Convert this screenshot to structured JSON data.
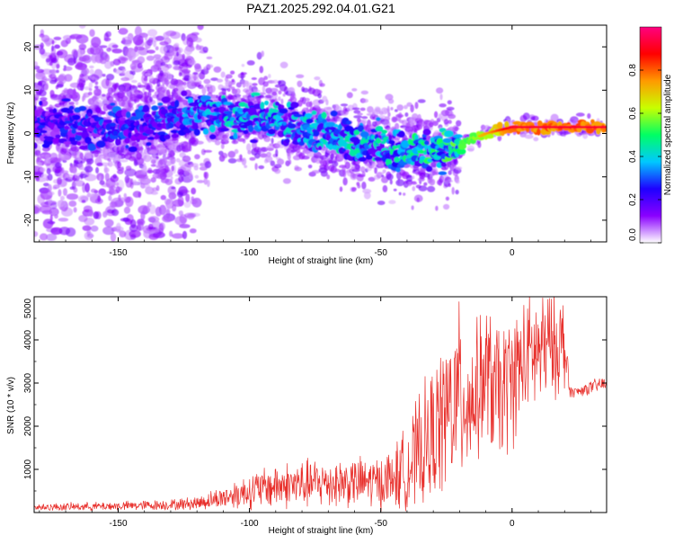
{
  "title": "PAZ1.2025.292.04.01.G21",
  "chart_data": [
    {
      "type": "heatmap",
      "xlabel": "Height of straight line (km)",
      "ylabel": "Frequency (Hz)",
      "xlim": [
        -182,
        36
      ],
      "ylim": [
        -25,
        25
      ],
      "xticks": [
        -150,
        -100,
        -50,
        0
      ],
      "yticks": [
        -20,
        -10,
        0,
        10,
        20
      ],
      "colorbar": {
        "label": "Normalized spectral amplitude",
        "range": [
          0,
          1
        ],
        "ticks": [
          "0.0",
          "0.2",
          "0.4",
          "0.6",
          "0.8"
        ],
        "colormap": [
          "#ffffff",
          "#8a00ff",
          "#1e00ff",
          "#00c8ff",
          "#00ff64",
          "#c8ff00",
          "#ff9a00",
          "#ff0000",
          "#ff0080"
        ]
      },
      "ridge": {
        "x": [
          -182,
          -150,
          -130,
          -120,
          -110,
          -100,
          -90,
          -80,
          -70,
          -60,
          -50,
          -40,
          -30,
          -20,
          -10,
          0,
          10,
          20,
          36
        ],
        "freq_hz": [
          2,
          1.5,
          3,
          5,
          4.5,
          4,
          3,
          1.5,
          -0.5,
          -2,
          -3,
          -4,
          -4,
          -3,
          0,
          1.5,
          1.5,
          1.5,
          1.5
        ],
        "peak_amplitude": [
          0.25,
          0.3,
          0.32,
          0.35,
          0.4,
          0.42,
          0.42,
          0.4,
          0.42,
          0.45,
          0.42,
          0.45,
          0.5,
          0.55,
          0.6,
          0.8,
          0.8,
          0.8,
          0.8
        ]
      }
    },
    {
      "type": "line",
      "xlabel": "Height of straight line (km)",
      "ylabel": "SNR (10 * v/v)",
      "xlim": [
        -182,
        36
      ],
      "ylim": [
        0,
        5000
      ],
      "xticks": [
        -150,
        -100,
        -50,
        0
      ],
      "yticks": [
        1000,
        2000,
        3000,
        4000,
        5000
      ],
      "color": "#e8302c",
      "envelope": {
        "x": [
          -182,
          -150,
          -130,
          -120,
          -110,
          -100,
          -90,
          -80,
          -70,
          -60,
          -50,
          -45,
          -40,
          -35,
          -30,
          -25,
          -20,
          -15,
          -10,
          -5,
          0,
          5,
          10,
          15,
          20,
          22,
          25,
          30,
          36
        ],
        "mean": [
          120,
          150,
          180,
          220,
          350,
          500,
          620,
          650,
          700,
          700,
          700,
          800,
          1000,
          1400,
          1800,
          2300,
          2700,
          2600,
          3200,
          2700,
          3100,
          3600,
          3700,
          3900,
          3900,
          2800,
          2800,
          2900,
          3000
        ],
        "spread": [
          80,
          100,
          120,
          150,
          250,
          400,
          500,
          550,
          550,
          550,
          600,
          700,
          1000,
          1300,
          1500,
          1800,
          2000,
          1500,
          1600,
          1600,
          1500,
          1300,
          1400,
          1200,
          1100,
          120,
          120,
          150,
          180
        ]
      }
    }
  ]
}
